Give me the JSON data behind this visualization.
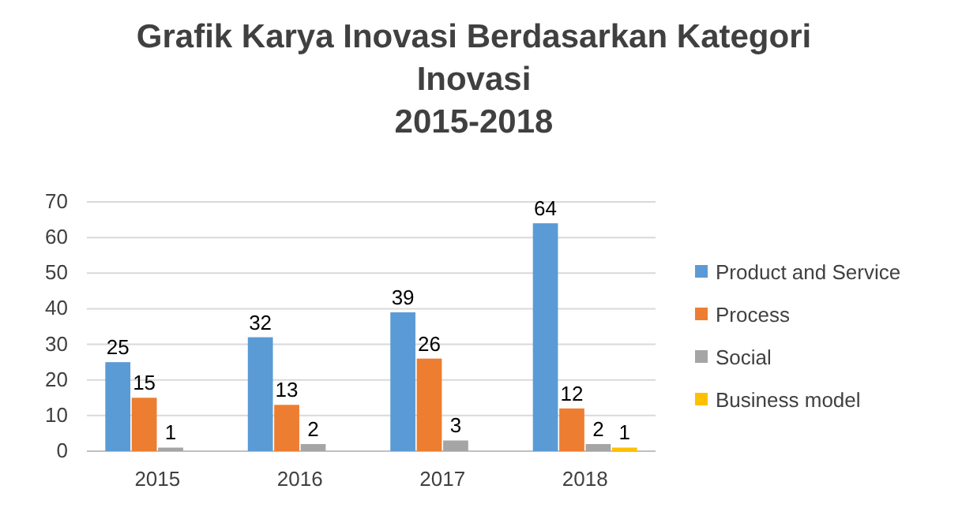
{
  "chart_data": {
    "type": "bar",
    "title": "Grafik Karya Inovasi Berdasarkan Kategori Inovasi",
    "subtitle": "2015-2018",
    "categories": [
      "2015",
      "2016",
      "2017",
      "2018"
    ],
    "series": [
      {
        "name": "Product and Service",
        "color": "#5b9bd5",
        "values": [
          25,
          32,
          39,
          64
        ]
      },
      {
        "name": "Process",
        "color": "#ed7d31",
        "values": [
          15,
          13,
          26,
          12
        ]
      },
      {
        "name": "Social",
        "color": "#a5a5a5",
        "values": [
          1,
          2,
          3,
          2
        ]
      },
      {
        "name": "Business model",
        "color": "#ffc000",
        "values": [
          null,
          null,
          null,
          1
        ]
      }
    ],
    "ylim": [
      0,
      70
    ],
    "yticks": [
      0,
      10,
      20,
      30,
      40,
      50,
      60,
      70
    ],
    "grid": "y",
    "legend": "right",
    "data_labels": true
  }
}
